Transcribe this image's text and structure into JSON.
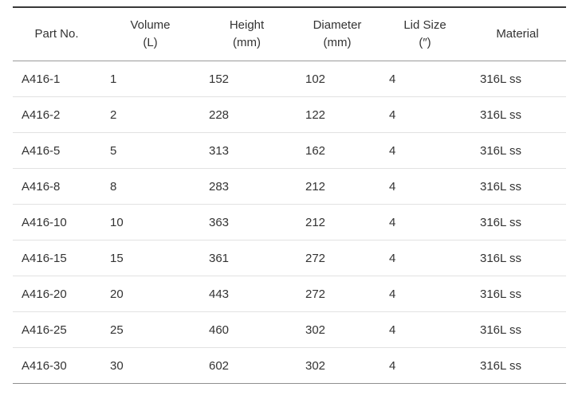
{
  "table": {
    "columns": [
      {
        "label": "Part No.",
        "unit": ""
      },
      {
        "label": "Volume",
        "unit": "(L)"
      },
      {
        "label": "Height",
        "unit": "(mm)"
      },
      {
        "label": "Diameter",
        "unit": "(mm)"
      },
      {
        "label": "Lid Size",
        "unit": "(″)"
      },
      {
        "label": "Material",
        "unit": ""
      }
    ],
    "rows": [
      [
        "A416-1",
        "1",
        "152",
        "102",
        "4",
        "316L ss"
      ],
      [
        "A416-2",
        "2",
        "228",
        "122",
        "4",
        "316L ss"
      ],
      [
        "A416-5",
        "5",
        "313",
        "162",
        "4",
        "316L ss"
      ],
      [
        "A416-8",
        "8",
        "283",
        "212",
        "4",
        "316L ss"
      ],
      [
        "A416-10",
        "10",
        "363",
        "212",
        "4",
        "316L ss"
      ],
      [
        "A416-15",
        "15",
        "361",
        "272",
        "4",
        "316L ss"
      ],
      [
        "A416-20",
        "20",
        "443",
        "272",
        "4",
        "316L ss"
      ],
      [
        "A416-25",
        "25",
        "460",
        "302",
        "4",
        "316L ss"
      ],
      [
        "A416-30",
        "30",
        "602",
        "302",
        "4",
        "316L ss"
      ]
    ]
  },
  "colors": {
    "top_border": "#383838",
    "header_rule": "#9a9a9a",
    "row_rule": "#e2e2e2",
    "bottom_border": "#8f8f8f",
    "text": "#333333"
  }
}
